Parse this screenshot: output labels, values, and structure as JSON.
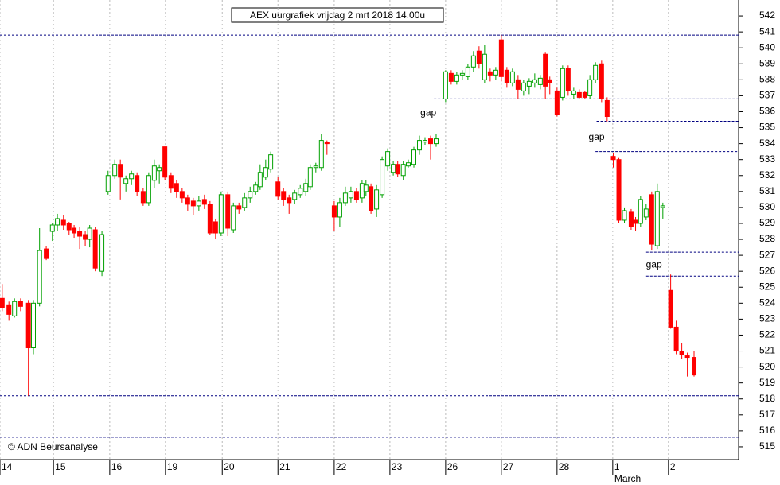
{
  "chart_data": {
    "type": "candlestick",
    "title": "AEX uurgrafiek vrijdag 2 mrt 2018 14.00u",
    "copyright": "© ADN Beursanalyse",
    "month_label": "March",
    "up_color": "#00a000",
    "down_color": "#ff0000",
    "level_color": "#000080",
    "grid": true,
    "xlim": [
      0,
      132.6
    ],
    "ylim": [
      514.2,
      543
    ],
    "yticks": [
      515,
      516,
      517,
      518,
      519,
      520,
      521,
      522,
      523,
      524,
      525,
      526,
      527,
      528,
      529,
      530,
      531,
      532,
      533,
      534,
      535,
      536,
      537,
      538,
      539,
      540,
      541,
      542
    ],
    "xticks": [
      {
        "value": 0,
        "label": "14"
      },
      {
        "value": 9.6,
        "label": "15"
      },
      {
        "value": 19.7,
        "label": "16"
      },
      {
        "value": 29.7,
        "label": "19"
      },
      {
        "value": 39.9,
        "label": "20"
      },
      {
        "value": 49.9,
        "label": "21"
      },
      {
        "value": 60,
        "label": "22"
      },
      {
        "value": 70,
        "label": "23"
      },
      {
        "value": 80,
        "label": "26"
      },
      {
        "value": 90,
        "label": "27"
      },
      {
        "value": 100,
        "label": "28"
      },
      {
        "value": 110,
        "label": "1"
      },
      {
        "value": 120,
        "label": "2"
      }
    ],
    "month_tick": 110,
    "x": [
      0.4,
      1.6,
      2.6,
      3.7,
      5.1,
      6,
      7.1,
      8.3,
      9.4,
      10.3,
      11.4,
      12.4,
      13.3,
      14.3,
      15.3,
      16.1,
      17.1,
      18.3,
      19.4,
      20.6,
      21.6,
      22.6,
      23.6,
      24.6,
      25.7,
      26.7,
      27.7,
      28.6,
      29.6,
      30.7,
      31.7,
      32.7,
      33.7,
      34.7,
      35.7,
      36.7,
      37.7,
      38.7,
      39.7,
      40.9,
      41.9,
      42.9,
      43.9,
      44.9,
      45.9,
      46.7,
      47.7,
      48.6,
      49.9,
      50.9,
      51.9,
      52.9,
      53.9,
      54.9,
      55.7,
      56.7,
      57.7,
      58.7,
      60,
      61,
      62,
      63,
      64,
      65,
      65.7,
      66.6,
      67.6,
      68.6,
      69.6,
      70.6,
      71.4,
      72.4,
      73.3,
      74.3,
      75.3,
      76.3,
      77.3,
      78.3,
      80,
      81,
      82,
      83,
      84,
      85,
      86,
      87,
      88,
      89,
      90,
      91,
      92,
      93,
      94,
      95,
      96,
      97,
      97.9,
      98.7,
      100,
      101,
      102,
      103,
      104,
      105,
      105.9,
      106.9,
      108,
      109,
      110.1,
      111.1,
      112.1,
      113.3,
      114.1,
      115,
      116,
      117,
      118,
      119,
      120.4,
      121.4,
      122.4,
      123.4,
      124.6
    ],
    "open": [
      524.3,
      523.9,
      523.2,
      524.1,
      524.0,
      521.2,
      524.0,
      527.4,
      528.5,
      528.9,
      529.2,
      529.0,
      528.7,
      528.5,
      528.3,
      528.0,
      528.6,
      526.0,
      531.0,
      532.0,
      532.7,
      531.5,
      531.8,
      532.0,
      531.0,
      530.3,
      531.7,
      532.3,
      533.8,
      532.0,
      531.5,
      531.0,
      530.6,
      530.4,
      530.1,
      530.5,
      530.2,
      529.1,
      528.4,
      530.8,
      528.6,
      530.1,
      530.0,
      530.6,
      531.0,
      531.3,
      531.9,
      532.4,
      531.6,
      531.0,
      530.6,
      530.5,
      530.8,
      531.0,
      531.3,
      532.5,
      532.5,
      534.1,
      530.1,
      529.4,
      530.3,
      530.6,
      531.0,
      530.6,
      531.0,
      531.3,
      529.9,
      530.8,
      532.6,
      532.2,
      532.7,
      532.0,
      532.6,
      532.7,
      533.6,
      534.1,
      534.3,
      534.0,
      536.8,
      538.4,
      537.9,
      538.3,
      538.2,
      538.8,
      539.8,
      538.0,
      538.5,
      538.3,
      540.5,
      538.6,
      537.8,
      538.0,
      537.3,
      537.6,
      537.8,
      537.7,
      539.6,
      538.0,
      537.3,
      536.9,
      538.7,
      537.1,
      537.2,
      537.2,
      537.0,
      538.0,
      539.0,
      536.7,
      533.2,
      533.0,
      529.2,
      529.7,
      529.2,
      529.0,
      529.4,
      530.8,
      527.6,
      530.0,
      524.8,
      522.5,
      521.0,
      520.7,
      520.6
    ],
    "high": [
      525.2,
      524.1,
      524.3,
      524.3,
      524.2,
      524.2,
      528.7,
      527.6,
      529.0,
      529.6,
      529.5,
      529.1,
      528.9,
      528.8,
      528.5,
      528.9,
      528.8,
      528.5,
      532.3,
      533.0,
      533.0,
      532.0,
      532.3,
      532.2,
      531.2,
      532.2,
      533.0,
      532.7,
      533.8,
      532.2,
      531.7,
      531.2,
      530.8,
      530.6,
      530.7,
      530.8,
      530.4,
      529.3,
      531.0,
      531.0,
      530.3,
      530.3,
      530.9,
      531.3,
      531.6,
      532.7,
      533.0,
      533.5,
      531.9,
      531.2,
      530.8,
      531.1,
      531.4,
      531.8,
      532.7,
      532.8,
      534.6,
      534.2,
      530.4,
      530.6,
      531.3,
      531.3,
      531.2,
      531.7,
      531.7,
      531.5,
      531.4,
      533.2,
      533.7,
      532.9,
      532.9,
      532.9,
      533.0,
      533.8,
      534.5,
      534.4,
      534.5,
      534.6,
      538.6,
      538.6,
      538.5,
      538.6,
      539.0,
      539.8,
      540.1,
      540.2,
      538.7,
      538.8,
      540.8,
      538.8,
      538.7,
      538.3,
      538.0,
      538.1,
      538.4,
      538.3,
      539.7,
      538.2,
      537.5,
      538.9,
      538.9,
      537.5,
      537.4,
      537.3,
      538.3,
      539.1,
      539.2,
      536.9,
      533.4,
      533.1,
      530.0,
      529.9,
      529.4,
      530.7,
      530.2,
      531.0,
      531.5,
      530.3,
      525.8,
      522.9,
      521.5,
      520.9,
      521.0
    ],
    "low": [
      523.5,
      522.9,
      523.1,
      523.5,
      518.2,
      520.8,
      523.8,
      526.7,
      527.9,
      528.5,
      528.6,
      528.3,
      528.1,
      527.4,
      527.6,
      527.5,
      526.0,
      525.7,
      530.8,
      531.8,
      530.5,
      531.0,
      531.4,
      530.7,
      530.1,
      530.1,
      531.2,
      531.5,
      531.7,
      530.9,
      530.6,
      530.3,
      529.8,
      529.5,
      529.8,
      529.9,
      528.3,
      528.0,
      528.2,
      528.2,
      528.4,
      529.6,
      529.8,
      530.3,
      530.8,
      531.1,
      531.7,
      532.2,
      530.5,
      530.1,
      529.6,
      530.2,
      530.6,
      530.7,
      531.1,
      532.2,
      532.3,
      533.3,
      528.5,
      528.8,
      530.1,
      530.3,
      530.3,
      530.3,
      530.7,
      529.6,
      529.4,
      530.6,
      532.3,
      532.0,
      531.9,
      531.7,
      532.5,
      532.5,
      533.3,
      533.9,
      533.0,
      533.8,
      536.6,
      537.7,
      537.7,
      538.0,
      538.0,
      538.5,
      538.7,
      537.8,
      537.9,
      538.0,
      537.9,
      537.5,
      537.6,
      536.8,
      537.0,
      537.1,
      537.5,
      537.4,
      536.8,
      537.1,
      535.7,
      536.7,
      537.0,
      536.8,
      536.8,
      536.8,
      536.8,
      537.8,
      536.6,
      535.4,
      532.5,
      529.0,
      529.0,
      528.6,
      528.5,
      528.8,
      529.2,
      527.3,
      527.4,
      529.3,
      522.4,
      520.8,
      520.5,
      519.4,
      519.4
    ],
    "close": [
      523.7,
      523.3,
      524.1,
      523.8,
      521.2,
      524.0,
      527.3,
      526.8,
      528.9,
      529.3,
      528.9,
      528.6,
      528.4,
      528.2,
      528.0,
      528.7,
      526.2,
      528.3,
      532.0,
      532.7,
      531.9,
      531.8,
      532.1,
      531.0,
      530.3,
      532.0,
      532.6,
      532.5,
      531.9,
      531.2,
      531.0,
      530.6,
      530.2,
      530.1,
      530.4,
      530.2,
      528.4,
      528.4,
      530.8,
      528.7,
      530.1,
      529.9,
      530.6,
      531.0,
      531.4,
      532.2,
      532.5,
      533.3,
      530.7,
      530.5,
      530.3,
      530.9,
      531.2,
      531.5,
      532.5,
      532.6,
      534.2,
      534.0,
      529.4,
      530.3,
      530.9,
      531.0,
      530.5,
      531.5,
      531.4,
      529.8,
      531.1,
      533.0,
      533.5,
      532.7,
      532.1,
      532.7,
      532.8,
      533.6,
      534.2,
      534.2,
      534.0,
      534.3,
      538.5,
      537.9,
      538.3,
      538.4,
      538.8,
      539.5,
      539.0,
      539.6,
      538.3,
      538.6,
      538.2,
      537.8,
      538.5,
      537.4,
      537.8,
      537.9,
      538.0,
      538.1,
      537.6,
      537.8,
      535.8,
      538.7,
      537.3,
      537.3,
      536.9,
      536.9,
      538.0,
      538.9,
      536.8,
      535.7,
      533.0,
      529.2,
      529.8,
      528.8,
      529.0,
      530.5,
      529.9,
      527.7,
      531.0,
      530.1,
      522.5,
      521.0,
      520.8,
      520.6,
      519.5
    ],
    "levels": [
      {
        "value": 540.8,
        "from": 0
      },
      {
        "value": 536.8,
        "from": 77.9
      },
      {
        "value": 535.4,
        "from": 107.1
      },
      {
        "value": 533.5,
        "from": 106.9
      },
      {
        "value": 527.2,
        "from": 116
      },
      {
        "value": 525.7,
        "from": 116
      },
      {
        "value": 518.2,
        "from": 0
      },
      {
        "value": 515.6,
        "from": 0
      }
    ],
    "annotations": [
      {
        "text": "gap",
        "x": 76.9,
        "y": 535.9
      },
      {
        "text": "gap",
        "x": 107.1,
        "y": 534.4
      },
      {
        "text": "gap",
        "x": 117.4,
        "y": 526.4
      }
    ]
  }
}
